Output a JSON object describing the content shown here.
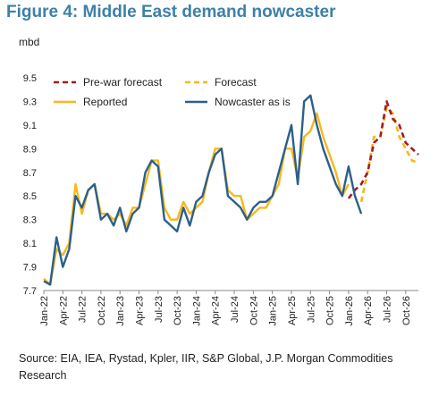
{
  "title": "Figure 4: Middle East demand nowcaster",
  "source": "Source: EIA, IEA, Rystad, Kpler, IIR, S&P Global, J.P. Morgan Commodities Research",
  "chart_data": {
    "type": "line",
    "ylabel": "mbd",
    "ylim": [
      7.7,
      9.5
    ],
    "yticks": [
      "7.7",
      "7.9",
      "8.1",
      "8.3",
      "8.5",
      "8.7",
      "8.9",
      "9.1",
      "9.3",
      "9.5"
    ],
    "x_tick_labels": [
      "Jan-22",
      "Apr-22",
      "Jul-22",
      "Oct-22",
      "Jan-23",
      "Apr-23",
      "Jul-23",
      "Oct-23",
      "Jan-24",
      "Apr-24",
      "Jul-24",
      "Oct-24",
      "Jan-25",
      "Apr-25",
      "Jul-25",
      "Oct-25",
      "Jan-26",
      "Apr-26",
      "Jul-26",
      "Oct-26"
    ],
    "x_range": [
      "Jan-22",
      "Dec-26"
    ],
    "grid": false,
    "legend": [
      {
        "name": "Pre-war forecast",
        "color": "#a31d20",
        "style": "dashed"
      },
      {
        "name": "Forecast",
        "color": "#f7b81a",
        "style": "dashed"
      },
      {
        "name": "Reported",
        "color": "#f7b81a",
        "style": "solid"
      },
      {
        "name": "Nowcaster as is",
        "color": "#2d5f8b",
        "style": "solid"
      }
    ],
    "series": [
      {
        "name": "Reported",
        "color": "#f7b81a",
        "style": "solid",
        "x": [
          "Jan-22",
          "Feb-22",
          "Mar-22",
          "Apr-22",
          "May-22",
          "Jun-22",
          "Jul-22",
          "Aug-22",
          "Sep-22",
          "Oct-22",
          "Nov-22",
          "Dec-22",
          "Jan-23",
          "Feb-23",
          "Mar-23",
          "Apr-23",
          "May-23",
          "Jun-23",
          "Jul-23",
          "Aug-23",
          "Sep-23",
          "Oct-23",
          "Nov-23",
          "Dec-23",
          "Jan-24",
          "Feb-24",
          "Mar-24",
          "Apr-24",
          "May-24",
          "Jun-24",
          "Jul-24",
          "Aug-24",
          "Sep-24",
          "Oct-24",
          "Nov-24",
          "Dec-24",
          "Jan-25",
          "Feb-25",
          "Mar-25",
          "Apr-25",
          "May-25",
          "Jun-25",
          "Jul-25",
          "Aug-25",
          "Sep-25",
          "Oct-25",
          "Nov-25",
          "Dec-25",
          "Jan-26"
        ],
        "values": [
          7.8,
          7.75,
          8.05,
          8.0,
          8.1,
          8.6,
          8.35,
          8.55,
          8.6,
          8.35,
          8.35,
          8.3,
          8.35,
          8.25,
          8.4,
          8.4,
          8.6,
          8.8,
          8.8,
          8.4,
          8.3,
          8.3,
          8.45,
          8.35,
          8.4,
          8.45,
          8.7,
          8.9,
          8.9,
          8.55,
          8.5,
          8.5,
          8.3,
          8.35,
          8.4,
          8.4,
          8.5,
          8.6,
          8.9,
          8.9,
          8.65,
          9.0,
          9.05,
          9.2,
          9.0,
          8.85,
          8.7,
          8.5,
          8.6
        ]
      },
      {
        "name": "Nowcaster as is",
        "color": "#2d5f8b",
        "style": "solid",
        "x": [
          "Jan-22",
          "Feb-22",
          "Mar-22",
          "Apr-22",
          "May-22",
          "Jun-22",
          "Jul-22",
          "Aug-22",
          "Sep-22",
          "Oct-22",
          "Nov-22",
          "Dec-22",
          "Jan-23",
          "Feb-23",
          "Mar-23",
          "Apr-23",
          "May-23",
          "Jun-23",
          "Jul-23",
          "Aug-23",
          "Sep-23",
          "Oct-23",
          "Nov-23",
          "Dec-23",
          "Jan-24",
          "Feb-24",
          "Mar-24",
          "Apr-24",
          "May-24",
          "Jun-24",
          "Jul-24",
          "Aug-24",
          "Sep-24",
          "Oct-24",
          "Nov-24",
          "Dec-24",
          "Jan-25",
          "Feb-25",
          "Mar-25",
          "Apr-25",
          "May-25",
          "Jun-25",
          "Jul-25",
          "Aug-25",
          "Sep-25",
          "Oct-25",
          "Nov-25",
          "Dec-25",
          "Jan-26",
          "Feb-26",
          "Mar-26"
        ],
        "values": [
          7.78,
          7.75,
          8.15,
          7.9,
          8.05,
          8.5,
          8.4,
          8.55,
          8.6,
          8.3,
          8.35,
          8.25,
          8.4,
          8.2,
          8.35,
          8.4,
          8.7,
          8.8,
          8.75,
          8.3,
          8.25,
          8.2,
          8.4,
          8.25,
          8.45,
          8.5,
          8.7,
          8.85,
          8.9,
          8.5,
          8.45,
          8.4,
          8.3,
          8.4,
          8.45,
          8.45,
          8.5,
          8.7,
          8.9,
          9.1,
          8.6,
          9.3,
          9.35,
          9.1,
          8.9,
          8.75,
          8.6,
          8.5,
          8.75,
          8.5,
          8.35
        ]
      },
      {
        "name": "Pre-war forecast",
        "color": "#a31d20",
        "style": "dashed",
        "x": [
          "Jan-26",
          "Feb-26",
          "Mar-26",
          "Apr-26",
          "May-26",
          "Jun-26",
          "Jul-26",
          "Aug-26",
          "Sep-26",
          "Oct-26",
          "Nov-26",
          "Dec-26"
        ],
        "values": [
          8.48,
          8.55,
          8.6,
          8.7,
          8.95,
          9.0,
          9.3,
          9.15,
          9.1,
          8.95,
          8.9,
          8.85
        ]
      },
      {
        "name": "Forecast",
        "color": "#f7b81a",
        "style": "dashed",
        "x": [
          "Mar-26",
          "Apr-26",
          "May-26",
          "Jun-26",
          "Jul-26",
          "Aug-26",
          "Sep-26",
          "Oct-26",
          "Nov-26",
          "Dec-26"
        ],
        "values": [
          8.45,
          8.7,
          9.0,
          9.0,
          9.25,
          9.2,
          9.0,
          8.9,
          8.8,
          8.78
        ]
      }
    ]
  }
}
